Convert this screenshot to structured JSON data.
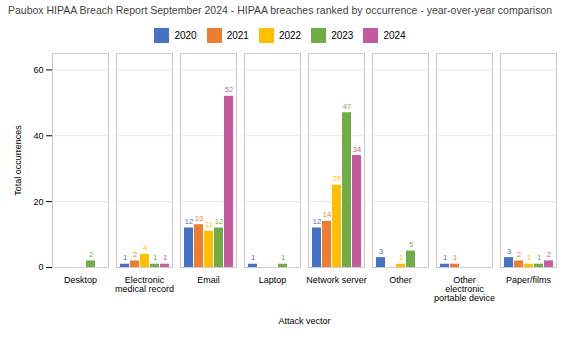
{
  "chart_data": {
    "type": "bar",
    "title": "Paubox HIPAA Breach Report September 2024 - HIPAA breaches ranked by occurrence - year-over-year comparison",
    "xlabel": "Attack vector",
    "ylabel": "Total occurrences",
    "categories": [
      "Desktop",
      "Electronic medical record",
      "Email",
      "Laptop",
      "Network server",
      "Other",
      "Other electronic portable device",
      "Paper/films"
    ],
    "series": [
      {
        "name": "2020",
        "color": "#4472c4",
        "values": [
          0,
          1,
          12,
          1,
          12,
          3,
          1,
          3
        ],
        "value_labels": [
          null,
          "1",
          "12",
          "1",
          "12",
          "3",
          "1",
          "3"
        ]
      },
      {
        "name": "2021",
        "color": "#ed7d31",
        "values": [
          0,
          2,
          13,
          0,
          14,
          0,
          1,
          2
        ],
        "value_labels": [
          null,
          "2",
          "13",
          null,
          "14",
          null,
          "1",
          "2"
        ]
      },
      {
        "name": "2022",
        "color": "#ffc000",
        "values": [
          0,
          4,
          11,
          0,
          25,
          1,
          0,
          1
        ],
        "value_labels": [
          null,
          "4",
          "11",
          null,
          "25",
          "1",
          null,
          "1"
        ]
      },
      {
        "name": "2023",
        "color": "#70ad47",
        "values": [
          2,
          1,
          12,
          1,
          47,
          5,
          0,
          1
        ],
        "value_labels": [
          "2",
          "1",
          "12",
          "1",
          "47",
          "5",
          null,
          "1"
        ]
      },
      {
        "name": "2024",
        "color": "#c55a9e",
        "values": [
          0,
          1,
          52,
          0,
          34,
          0,
          0,
          2
        ],
        "value_labels": [
          null,
          "1",
          "52",
          null,
          "34",
          null,
          null,
          "2"
        ]
      }
    ],
    "ylim": [
      0,
      65
    ],
    "yticks": [
      0,
      20,
      40,
      60
    ],
    "grid": true,
    "legend": "top",
    "data_labels": true
  }
}
